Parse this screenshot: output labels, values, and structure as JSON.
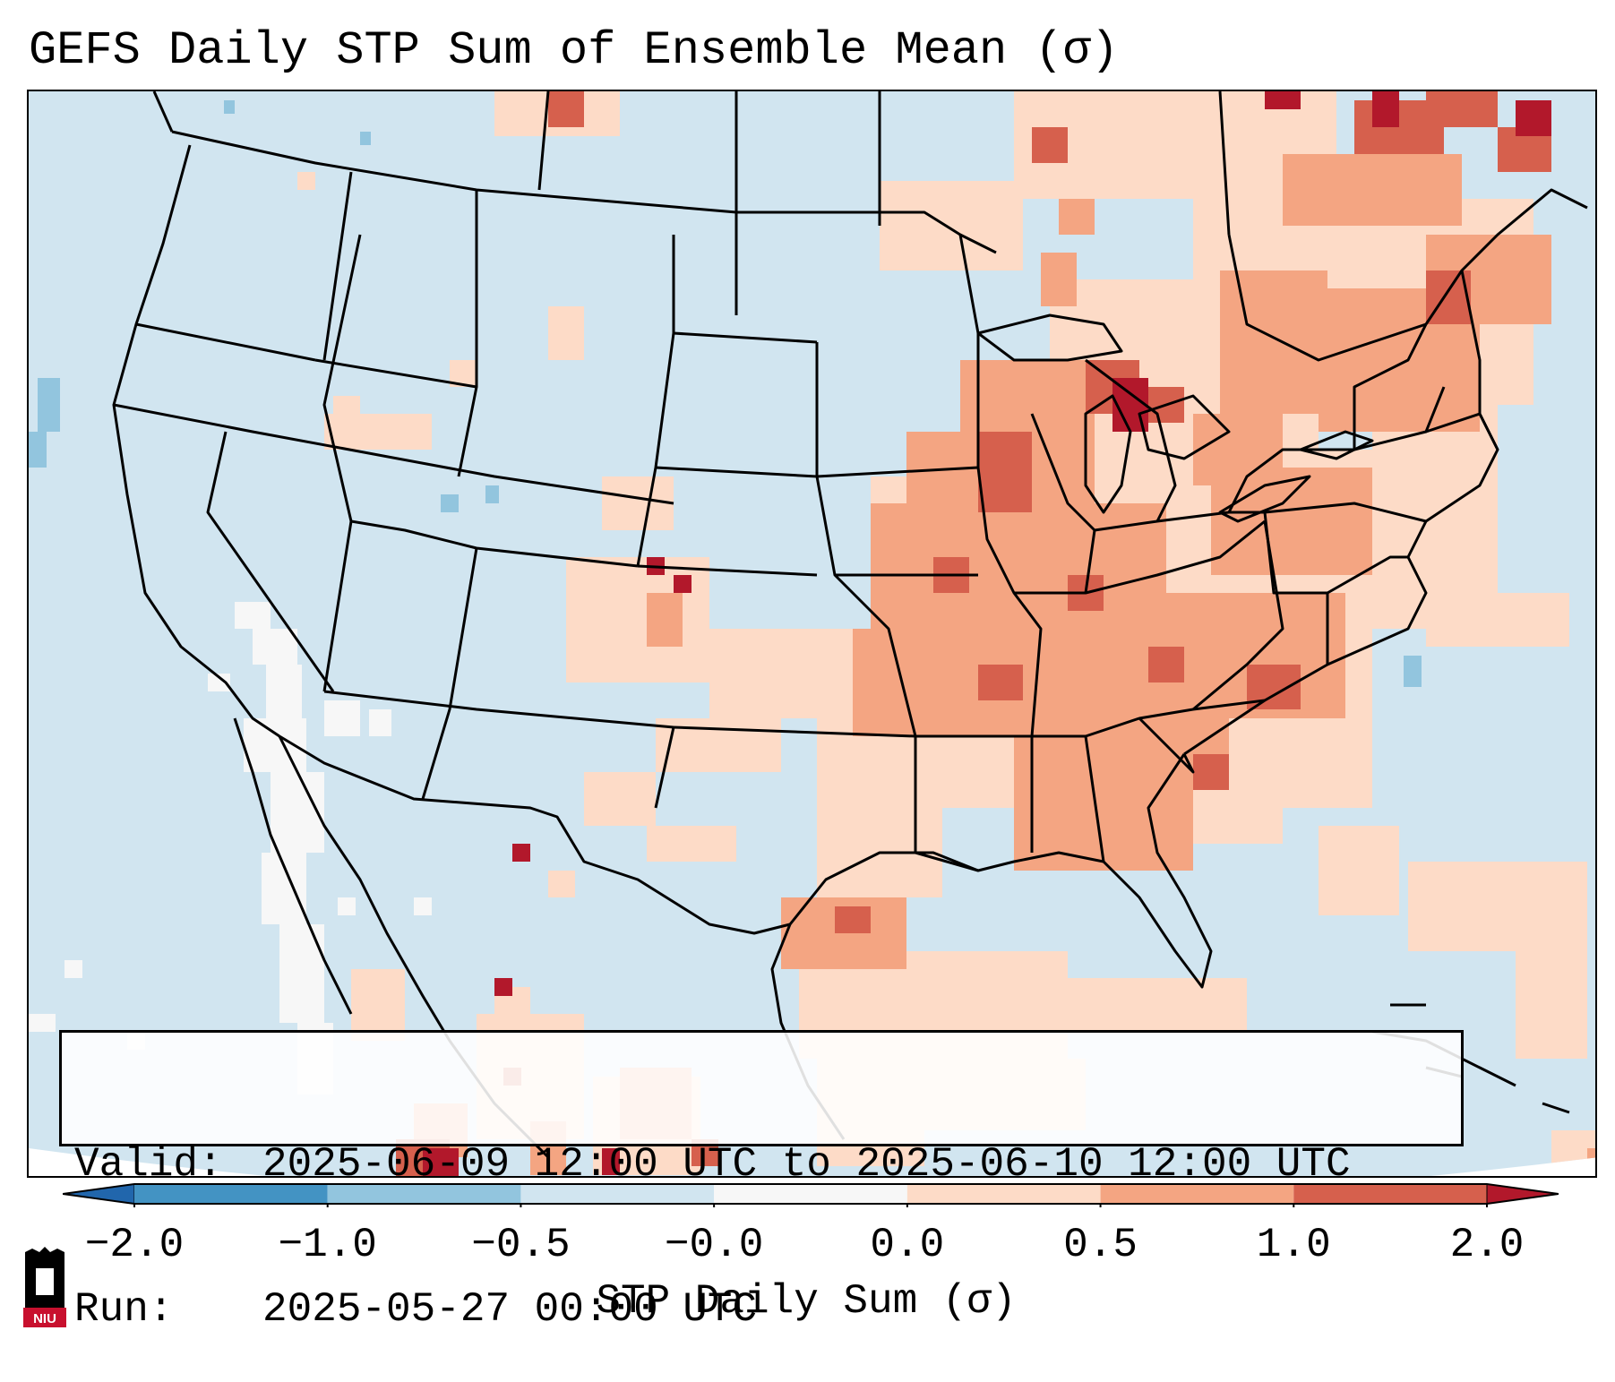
{
  "title": "GEFS Daily STP Sum of Ensemble Mean (σ)",
  "info": {
    "valid_label": "Valid:",
    "valid_value": "2025-06-09 12:00 UTC to 2025-06-10 12:00 UTC",
    "run_label": "Run:",
    "run_value": "2025-05-27 00:00 UTC"
  },
  "colorbar": {
    "label": "STP Daily Sum (σ)",
    "ticks": [
      "−2.0",
      "−1.0",
      "−0.5",
      "−0.0",
      "0.0",
      "0.5",
      "1.0",
      "2.0"
    ],
    "bins": [
      {
        "from": -2.0,
        "to": -1.0,
        "color": "#4393c3"
      },
      {
        "from": -1.0,
        "to": -0.5,
        "color": "#92c5de"
      },
      {
        "from": -0.5,
        "to": -0.0,
        "color": "#d1e5f0"
      },
      {
        "from": -0.0,
        "to": 0.0,
        "color": "#f7f7f7"
      },
      {
        "from": 0.0,
        "to": 0.5,
        "color": "#fddbc7"
      },
      {
        "from": 0.5,
        "to": 1.0,
        "color": "#f4a582"
      },
      {
        "from": 1.0,
        "to": 2.0,
        "color": "#d6604d"
      }
    ],
    "under_color": "#2166ac",
    "over_color": "#b2182b"
  },
  "logo": {
    "text": "NIU",
    "color": "#c8102e"
  },
  "map": {
    "background_color": "#d1e5f0",
    "outside_color": "#ffffff",
    "border_color": "#000000"
  }
}
